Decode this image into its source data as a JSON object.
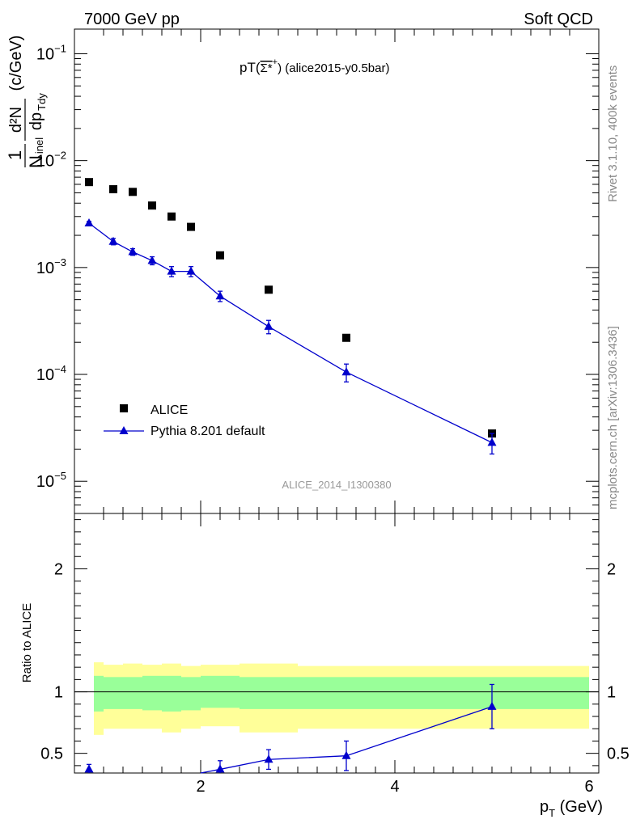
{
  "header": {
    "left": "7000 GeV pp",
    "right": "Soft QCD"
  },
  "side_labels": {
    "rivet": "Rivet 3.1.10,  400k events",
    "mcplots": "mcplots.cern.ch [arXiv:1306.3436]"
  },
  "plot_title": {
    "prefix": "pT(",
    "particle": "Σ*",
    "charge": "+",
    "suffix": ") (alice2015-y0.5bar)"
  },
  "analysis_id": "ALICE_2014_I1300380",
  "chart_data": [
    {
      "type": "scatter",
      "panel": "main",
      "yscale": "log",
      "xlim": [
        0.7,
        6.1
      ],
      "ylim": [
        5e-06,
        0.17
      ],
      "ylabel": {
        "frac1_num": "1",
        "frac1_den": "N",
        "frac1_den_sub": "inel",
        "frac2_num": "d²N",
        "frac2_den": "dp",
        "frac2_den_sub": "Tdy",
        "units": "(c/GeV)"
      },
      "yticks": [
        {
          "value": 0.1,
          "base": "10",
          "exp": "−1"
        },
        {
          "value": 0.01,
          "base": "10",
          "exp": "−2"
        },
        {
          "value": 0.001,
          "base": "10",
          "exp": "−3"
        },
        {
          "value": 0.0001,
          "base": "10",
          "exp": "−4"
        },
        {
          "value": 1e-05,
          "base": "10",
          "exp": "−5"
        }
      ],
      "legend_position": "lower-left",
      "series": [
        {
          "name": "ALICE",
          "marker": "square",
          "color": "#000000",
          "x": [
            0.85,
            1.1,
            1.3,
            1.5,
            1.7,
            1.9,
            2.2,
            2.7,
            3.5,
            5.0
          ],
          "y": [
            0.0063,
            0.0054,
            0.0051,
            0.0038,
            0.003,
            0.0024,
            0.0013,
            0.00062,
            0.00022,
            2.8e-05
          ]
        },
        {
          "name": "Pythia 8.201 default",
          "marker": "triangle",
          "color": "#0000cc",
          "x": [
            0.85,
            1.1,
            1.3,
            1.5,
            1.7,
            1.9,
            2.2,
            2.7,
            3.5,
            5.0
          ],
          "y": [
            0.0026,
            0.00175,
            0.0014,
            0.00116,
            0.00092,
            0.00092,
            0.00054,
            0.00028,
            0.000105,
            2.3e-05
          ],
          "yerr": [
            0.0001,
            0.00012,
            0.0001,
            0.0001,
            0.0001,
            0.0001,
            6e-05,
            4e-05,
            2e-05,
            5e-06
          ]
        }
      ]
    },
    {
      "type": "line",
      "panel": "ratio",
      "xlim": [
        0.7,
        6.1
      ],
      "ylim": [
        0.34,
        2.45
      ],
      "ylabel": "Ratio to ALICE",
      "xlabel": {
        "main": "p",
        "sub": "T",
        "units": " (GeV)"
      },
      "xticks": [
        2,
        4,
        6
      ],
      "yticks": [
        0.5,
        1,
        2
      ],
      "reference_line": 1,
      "bands": {
        "x_edges": [
          0.7,
          1.0,
          1.2,
          1.4,
          1.6,
          1.8,
          2.0,
          2.4,
          3.0,
          4.0,
          6.0
        ],
        "inner_color": "#99ff99",
        "outer_color": "#ffff99",
        "inner_low": [
          0.84,
          0.86,
          0.86,
          0.85,
          0.84,
          0.85,
          0.87,
          0.86,
          0.86,
          0.86
        ],
        "inner_high": [
          1.13,
          1.12,
          1.12,
          1.13,
          1.13,
          1.12,
          1.13,
          1.12,
          1.12,
          1.12
        ],
        "outer_low": [
          0.65,
          0.7,
          0.7,
          0.7,
          0.67,
          0.7,
          0.72,
          0.67,
          0.7,
          0.7
        ],
        "outer_high": [
          1.24,
          1.22,
          1.23,
          1.22,
          1.23,
          1.21,
          1.22,
          1.23,
          1.21,
          1.21
        ]
      },
      "series": [
        {
          "name": "Pythia 8.201 default",
          "color": "#0000cc",
          "x": [
            0.85,
            2.2,
            2.7,
            3.5,
            5.0
          ],
          "y": [
            0.37,
            0.37,
            0.45,
            0.48,
            0.88
          ],
          "yerr": [
            0.04,
            0.07,
            0.08,
            0.12,
            0.18
          ]
        }
      ]
    }
  ]
}
